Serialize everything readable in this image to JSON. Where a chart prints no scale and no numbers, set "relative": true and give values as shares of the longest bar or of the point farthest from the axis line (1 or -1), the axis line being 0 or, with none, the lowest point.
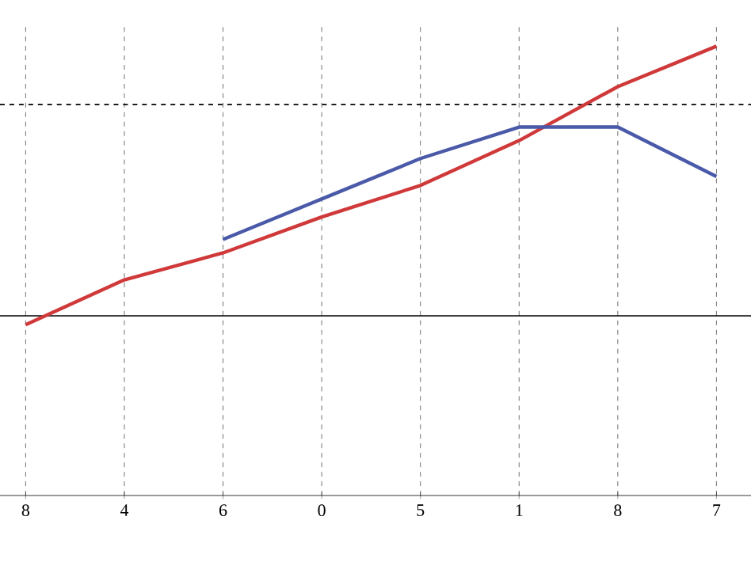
{
  "chart_data": {
    "type": "line",
    "relative": true,
    "categories": [
      "8",
      "4",
      "6",
      "0",
      "5",
      "1",
      "8",
      "7"
    ],
    "series": [
      {
        "color": "#d0393a",
        "values": [
          0.38,
          0.48,
          0.54,
          0.62,
          0.69,
          0.79,
          0.91,
          1.0
        ]
      },
      {
        "color": "#4a5aa8",
        "values": [
          null,
          null,
          0.57,
          0.66,
          0.75,
          0.82,
          0.82,
          0.71
        ]
      }
    ],
    "grid": "x",
    "ref_lines": [
      {
        "axis": "y",
        "value": 0.87,
        "line_style": "dashed"
      },
      {
        "axis": "y",
        "value": 0.4,
        "line_style": "solid"
      }
    ]
  }
}
